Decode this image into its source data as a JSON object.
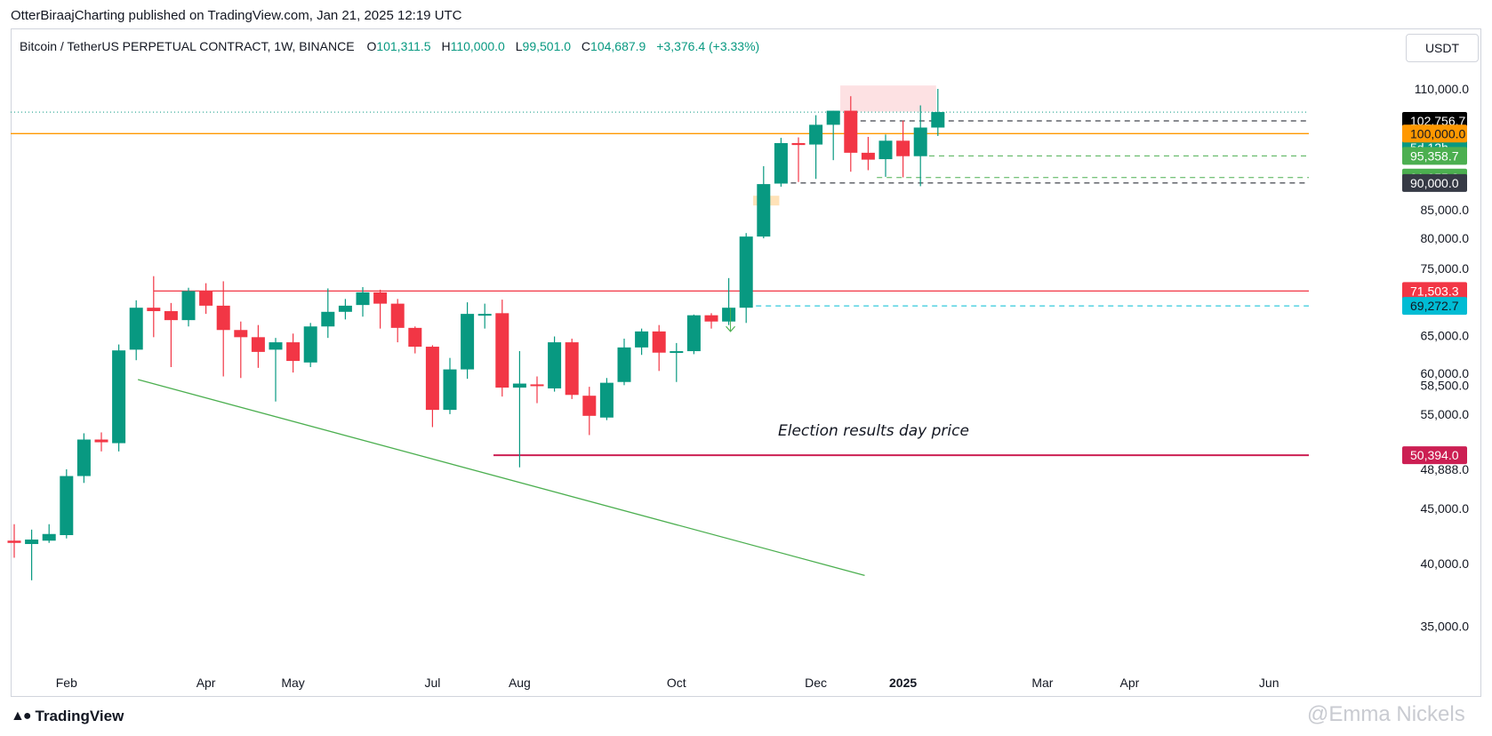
{
  "header": {
    "publisher": "OtterBiraajCharting published on TradingView.com, Jan 21, 2025 12:19 UTC"
  },
  "legend": {
    "symbol": "Bitcoin / TetherUS PERPETUAL CONTRACT, 1W, BINANCE",
    "open_label": "O",
    "open": "101,311.5",
    "high_label": "H",
    "high": "110,000.0",
    "low_label": "L",
    "low": "99,501.0",
    "close_label": "C",
    "close": "104,687.9",
    "change": "+3,376.4 (+3.33%)"
  },
  "currency_button": "USDT",
  "footer": {
    "logo": "TradingView",
    "watermark": "@Emma Nickels"
  },
  "colors": {
    "up": "#089981",
    "down": "#f23645",
    "orange": "#ff9800",
    "resistance": "#f23645",
    "support_dark": "#cc1f53",
    "trend": "#4caf50",
    "cyan": "#00bcd4"
  },
  "chart_data": {
    "type": "candlestick",
    "interval": "1W",
    "y_ticks": [
      {
        "label": "110,000.0",
        "value": 110000
      },
      {
        "label": "85,000.0",
        "value": 85000
      },
      {
        "label": "80,000.0",
        "value": 80000
      },
      {
        "label": "75,000.0",
        "value": 75000
      },
      {
        "label": "65,000.0",
        "value": 65000
      },
      {
        "label": "60,000.0",
        "value": 60000
      },
      {
        "label": "58,500.0",
        "value": 58500
      },
      {
        "label": "55,000.0",
        "value": 55000
      },
      {
        "label": "48,888.0",
        "value": 48888
      },
      {
        "label": "45,000.0",
        "value": 45000
      },
      {
        "label": "40,000.0",
        "value": 40000
      },
      {
        "label": "35,000.0",
        "value": 35000
      }
    ],
    "x_ticks": [
      {
        "label": "Feb",
        "week": 3
      },
      {
        "label": "Apr",
        "week": 11
      },
      {
        "label": "May",
        "week": 16
      },
      {
        "label": "Jul",
        "week": 24
      },
      {
        "label": "Aug",
        "week": 29
      },
      {
        "label": "Oct",
        "week": 38
      },
      {
        "label": "Dec",
        "week": 46
      },
      {
        "label": "2025",
        "week": 51
      },
      {
        "label": "Mar",
        "week": 59
      },
      {
        "label": "Apr",
        "week": 64
      },
      {
        "label": "Jun",
        "week": 72
      }
    ],
    "candles": [
      {
        "o": 42000,
        "h": 43500,
        "l": 40500,
        "c": 41800
      },
      {
        "o": 41700,
        "h": 43000,
        "l": 38600,
        "c": 42100
      },
      {
        "o": 42000,
        "h": 43500,
        "l": 41800,
        "c": 42600
      },
      {
        "o": 42500,
        "h": 48900,
        "l": 42200,
        "c": 48200
      },
      {
        "o": 48200,
        "h": 52800,
        "l": 47500,
        "c": 52100
      },
      {
        "o": 52100,
        "h": 52900,
        "l": 50800,
        "c": 51800
      },
      {
        "o": 51700,
        "h": 63800,
        "l": 50800,
        "c": 63000
      },
      {
        "o": 63100,
        "h": 70100,
        "l": 61700,
        "c": 69000
      },
      {
        "o": 69000,
        "h": 73800,
        "l": 64800,
        "c": 68500
      },
      {
        "o": 68500,
        "h": 69700,
        "l": 60800,
        "c": 67200
      },
      {
        "o": 67200,
        "h": 72000,
        "l": 66300,
        "c": 71500
      },
      {
        "o": 71500,
        "h": 72700,
        "l": 68100,
        "c": 69300
      },
      {
        "o": 69300,
        "h": 73000,
        "l": 59600,
        "c": 65800
      },
      {
        "o": 65800,
        "h": 67000,
        "l": 59400,
        "c": 64800
      },
      {
        "o": 64800,
        "h": 66500,
        "l": 60700,
        "c": 62800
      },
      {
        "o": 63100,
        "h": 64700,
        "l": 56500,
        "c": 64100
      },
      {
        "o": 64100,
        "h": 65300,
        "l": 60100,
        "c": 61600
      },
      {
        "o": 61400,
        "h": 66800,
        "l": 60800,
        "c": 66300
      },
      {
        "o": 66300,
        "h": 71900,
        "l": 64700,
        "c": 68400
      },
      {
        "o": 68400,
        "h": 70300,
        "l": 67300,
        "c": 69300
      },
      {
        "o": 69400,
        "h": 72100,
        "l": 67700,
        "c": 71300
      },
      {
        "o": 71300,
        "h": 71700,
        "l": 66000,
        "c": 69600
      },
      {
        "o": 69600,
        "h": 70300,
        "l": 64100,
        "c": 66100
      },
      {
        "o": 66100,
        "h": 66300,
        "l": 62600,
        "c": 63500
      },
      {
        "o": 63500,
        "h": 63700,
        "l": 53500,
        "c": 55500
      },
      {
        "o": 55500,
        "h": 62000,
        "l": 55000,
        "c": 60500
      },
      {
        "o": 60500,
        "h": 69800,
        "l": 59300,
        "c": 68100
      },
      {
        "o": 68100,
        "h": 69600,
        "l": 66000,
        "c": 68100
      },
      {
        "o": 68200,
        "h": 70200,
        "l": 57100,
        "c": 58200
      },
      {
        "o": 58200,
        "h": 62900,
        "l": 49100,
        "c": 58700
      },
      {
        "o": 58600,
        "h": 59600,
        "l": 56300,
        "c": 58500
      },
      {
        "o": 58100,
        "h": 64900,
        "l": 57700,
        "c": 64100
      },
      {
        "o": 64100,
        "h": 64600,
        "l": 56800,
        "c": 57300
      },
      {
        "o": 57200,
        "h": 58300,
        "l": 52600,
        "c": 54800
      },
      {
        "o": 54600,
        "h": 59400,
        "l": 54300,
        "c": 58800
      },
      {
        "o": 58900,
        "h": 64600,
        "l": 58500,
        "c": 63400
      },
      {
        "o": 63400,
        "h": 66000,
        "l": 62400,
        "c": 65600
      },
      {
        "o": 65600,
        "h": 66500,
        "l": 60300,
        "c": 62700
      },
      {
        "o": 62800,
        "h": 64000,
        "l": 58900,
        "c": 62900
      },
      {
        "o": 62900,
        "h": 68000,
        "l": 62500,
        "c": 67900
      },
      {
        "o": 67900,
        "h": 68200,
        "l": 66000,
        "c": 67000
      },
      {
        "o": 67000,
        "h": 73500,
        "l": 66500,
        "c": 69000
      },
      {
        "o": 69000,
        "h": 80900,
        "l": 66800,
        "c": 80300
      },
      {
        "o": 80300,
        "h": 93300,
        "l": 80000,
        "c": 89800
      },
      {
        "o": 89900,
        "h": 99100,
        "l": 89300,
        "c": 98000
      },
      {
        "o": 98000,
        "h": 99200,
        "l": 90200,
        "c": 97600
      },
      {
        "o": 97700,
        "h": 104000,
        "l": 90800,
        "c": 101900
      },
      {
        "o": 101900,
        "h": 105000,
        "l": 94500,
        "c": 105000
      },
      {
        "o": 105000,
        "h": 108300,
        "l": 92200,
        "c": 96000
      },
      {
        "o": 96000,
        "h": 99300,
        "l": 92500,
        "c": 94600
      },
      {
        "o": 94700,
        "h": 99800,
        "l": 91200,
        "c": 98500
      },
      {
        "o": 98500,
        "h": 102800,
        "l": 91100,
        "c": 95300
      },
      {
        "o": 95300,
        "h": 106200,
        "l": 89400,
        "c": 101300
      },
      {
        "o": 101300,
        "h": 110000,
        "l": 99500,
        "c": 104700
      }
    ],
    "levels": [
      {
        "price": 102756.7,
        "label": "102,756.7",
        "style": "dashed",
        "color": "#131722"
      },
      {
        "price": 100000,
        "label": "100,000.0",
        "style": "solid",
        "color": "#ff9800"
      },
      {
        "price": 95358.7,
        "label": "95,358.7",
        "style": "dashed",
        "color": "#4caf50"
      },
      {
        "price": 91055.8,
        "label": "91,055.8",
        "style": "dashed",
        "color": "#4caf50"
      },
      {
        "price": 90000,
        "label": "90,000.0",
        "style": "dashed",
        "color": "#131722"
      },
      {
        "price": 71503.3,
        "label": "71,503.3",
        "style": "solid",
        "color": "#f23645"
      },
      {
        "price": 69272.7,
        "label": "69,272.7",
        "style": "dashed",
        "color": "#00bcd4"
      },
      {
        "price": 50394,
        "label": "50,394.0",
        "style": "solid",
        "color": "#cc1f53"
      }
    ],
    "last_price": {
      "label": "104,687.9",
      "countdown": "5d 12h",
      "color": "#089981"
    },
    "annotation": "Election results day price"
  }
}
